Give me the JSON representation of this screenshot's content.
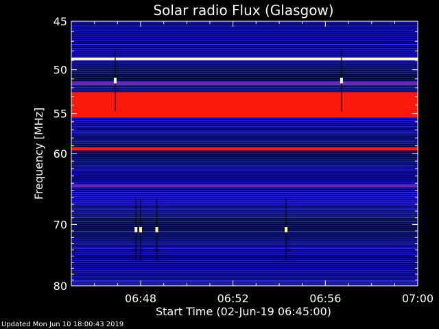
{
  "chart_data": {
    "type": "heatmap",
    "title": "Solar radio Flux (Glasgow)",
    "xlabel": "Start Time (02-Jun-19 06:45:00)",
    "ylabel": "Frequency [MHz]",
    "x_range_minutes": [
      0,
      15
    ],
    "x_ticks": [
      {
        "label": "06:48",
        "minute": 3
      },
      {
        "label": "06:52",
        "minute": 7
      },
      {
        "label": "06:56",
        "minute": 11
      },
      {
        "label": "07:00",
        "minute": 15
      }
    ],
    "y_scale": "log",
    "ylim": [
      45,
      80
    ],
    "y_ticks": [
      45,
      50,
      55,
      60,
      70,
      80
    ],
    "y_reversed": true,
    "colors": {
      "background": "#05053a",
      "low": "#0a12b8",
      "mid": "#2c30ff",
      "high": "#ff1a10",
      "peak": "#fff6c8"
    },
    "bands": [
      {
        "freq_start": 48.7,
        "freq_end": 49.0,
        "level": "peak"
      },
      {
        "freq_start": 51.3,
        "freq_end": 51.7,
        "level": "purple"
      },
      {
        "freq_start": 52.5,
        "freq_end": 55.5,
        "level": "high"
      },
      {
        "freq_start": 59.2,
        "freq_end": 59.6,
        "level": "high"
      },
      {
        "freq_start": 64.2,
        "freq_end": 64.6,
        "level": "purple"
      }
    ],
    "bursts": [
      {
        "minute": 1.9,
        "freq": 51.2
      },
      {
        "minute": 11.7,
        "freq": 51.2
      },
      {
        "minute": 2.8,
        "freq": 70.8
      },
      {
        "minute": 3.0,
        "freq": 70.8
      },
      {
        "minute": 3.7,
        "freq": 70.8
      },
      {
        "minute": 9.3,
        "freq": 70.8
      }
    ]
  },
  "footer": {
    "updated": "Updated Mon Jun 10 18:00:43 2019"
  }
}
